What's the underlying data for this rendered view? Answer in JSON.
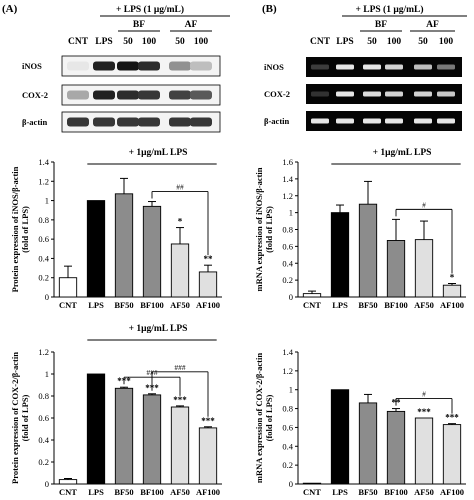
{
  "panels": {
    "A": {
      "label": "(A)",
      "header": {
        "treatment": "+ LPS (1 μg/mL)",
        "groups": [
          "BF",
          "AF"
        ],
        "lanes": [
          "CNT",
          "LPS",
          "50",
          "100",
          "50",
          "100"
        ]
      },
      "blots": [
        {
          "name": "iNOS",
          "intensities": [
            0.02,
            0.9,
            0.95,
            0.85,
            0.4,
            0.2
          ]
        },
        {
          "name": "COX-2",
          "intensities": [
            0.3,
            0.9,
            0.85,
            0.8,
            0.75,
            0.65
          ]
        },
        {
          "name": "β-actin",
          "intensities": [
            0.8,
            0.8,
            0.8,
            0.8,
            0.8,
            0.8
          ]
        }
      ],
      "blot_style": "western"
    },
    "B": {
      "label": "(B)",
      "header": {
        "treatment": "+ LPS (1 μg/mL)",
        "groups": [
          "BF",
          "AF"
        ],
        "lanes": [
          "CNT",
          "LPS",
          "50",
          "100",
          "50",
          "100"
        ]
      },
      "blots": [
        {
          "name": "iNOS",
          "intensities": [
            0.1,
            0.95,
            0.95,
            0.85,
            0.75,
            0.4
          ]
        },
        {
          "name": "COX-2",
          "intensities": [
            0.05,
            0.95,
            0.9,
            0.85,
            0.85,
            0.8
          ]
        },
        {
          "name": "β-actin",
          "intensities": [
            0.95,
            0.95,
            0.95,
            0.95,
            0.95,
            0.95
          ]
        }
      ],
      "blot_style": "gel"
    }
  },
  "chart_data": [
    {
      "type": "bar",
      "panel": "A",
      "title": "+ 1μg/mL LPS",
      "ylabel": "Protein expression of iNOS/β-actin (fold of LPS)",
      "categories": [
        "CNT",
        "LPS",
        "BF50",
        "BF100",
        "AF50",
        "AF100"
      ],
      "values": [
        0.2,
        1.0,
        1.07,
        0.94,
        0.55,
        0.26
      ],
      "errors": [
        0.12,
        0.0,
        0.16,
        0.05,
        0.17,
        0.07
      ],
      "stars": [
        "",
        "",
        "",
        "",
        "*",
        "**"
      ],
      "comparisons": [
        {
          "from": 3,
          "to": 5,
          "label": "##"
        }
      ],
      "ylim": [
        0,
        1.4
      ],
      "yticks": [
        "0",
        "0.2",
        "0.4",
        "0.6",
        "0.8",
        "1",
        "1.2",
        "1.4"
      ],
      "colors": [
        "#ffffff",
        "#000000",
        "#8c8c8c",
        "#8c8c8c",
        "#e0e0e0",
        "#e0e0e0"
      ]
    },
    {
      "type": "bar",
      "panel": "B",
      "title": "+ 1μg/mL LPS",
      "ylabel": "mRNA expression of iNOS/β-actin (fold of LPS)",
      "categories": [
        "CNT",
        "LPS",
        "BF50",
        "BF100",
        "AF50",
        "AF100"
      ],
      "values": [
        0.04,
        1.0,
        1.1,
        0.67,
        0.68,
        0.14
      ],
      "errors": [
        0.03,
        0.09,
        0.27,
        0.25,
        0.22,
        0.02
      ],
      "stars": [
        "",
        "",
        "",
        "",
        "",
        "*"
      ],
      "comparisons": [
        {
          "from": 3,
          "to": 5,
          "label": "#"
        }
      ],
      "ylim": [
        0,
        1.6
      ],
      "yticks": [
        "0",
        "0.2",
        "0.4",
        "0.6",
        "0.8",
        "1",
        "1.2",
        "1.4",
        "1.6"
      ],
      "colors": [
        "#ffffff",
        "#000000",
        "#8c8c8c",
        "#8c8c8c",
        "#e0e0e0",
        "#e0e0e0"
      ]
    },
    {
      "type": "bar",
      "panel": "A",
      "title": "+ 1μg/mL LPS",
      "ylabel": "Protein expression of COX-2/β-actin (fold of LPS)",
      "categories": [
        "CNT",
        "LPS",
        "BF50",
        "BF100",
        "AF50",
        "AF100"
      ],
      "values": [
        0.04,
        1.0,
        0.87,
        0.81,
        0.7,
        0.51
      ],
      "errors": [
        0.01,
        0.0,
        0.01,
        0.01,
        0.01,
        0.01
      ],
      "stars": [
        "",
        "",
        "***",
        "***",
        "***",
        "***"
      ],
      "comparisons": [
        {
          "from": 2,
          "to": 4,
          "label": "###"
        },
        {
          "from": 3,
          "to": 5,
          "label": "###"
        }
      ],
      "ylim": [
        0,
        1.2
      ],
      "yticks": [
        "0",
        "0.2",
        "0.4",
        "0.6",
        "0.8",
        "1",
        "1.2"
      ],
      "colors": [
        "#ffffff",
        "#000000",
        "#8c8c8c",
        "#8c8c8c",
        "#e0e0e0",
        "#e0e0e0"
      ]
    },
    {
      "type": "bar",
      "panel": "B",
      "title": "",
      "ylabel": "mRNA expression of COX-2/β-actin (fold of LPS)",
      "categories": [
        "CNT",
        "LPS",
        "BF50",
        "BF100",
        "AF50",
        "AF100"
      ],
      "values": [
        0.0,
        1.0,
        0.86,
        0.77,
        0.7,
        0.63
      ],
      "errors": [
        0.0,
        0.0,
        0.09,
        0.03,
        0.0,
        0.01
      ],
      "stars": [
        "",
        "",
        "",
        "**",
        "***",
        "***"
      ],
      "comparisons": [
        {
          "from": 3,
          "to": 5,
          "label": "#"
        }
      ],
      "ylim": [
        0,
        1.4
      ],
      "yticks": [
        "0",
        "0.2",
        "0.4",
        "0.6",
        "0.8",
        "1",
        "1.2",
        "1.4"
      ],
      "colors": [
        "#ffffff",
        "#000000",
        "#8c8c8c",
        "#8c8c8c",
        "#e0e0e0",
        "#e0e0e0"
      ]
    }
  ]
}
